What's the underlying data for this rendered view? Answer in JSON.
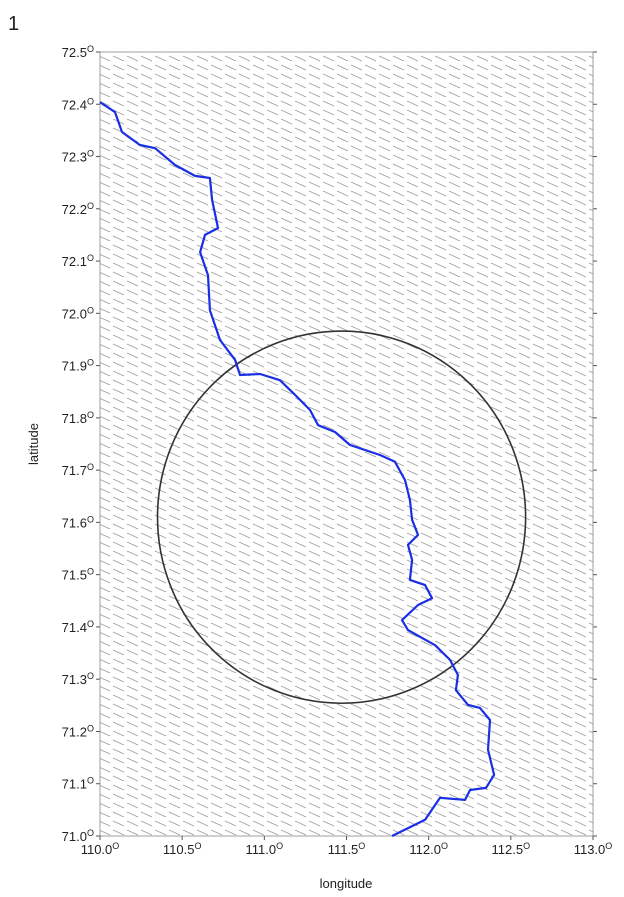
{
  "chart_data": {
    "type": "map",
    "panel_label": "1",
    "x_label": "longitude",
    "y_label": "latitude",
    "tick_suffix": "O",
    "xlim": [
      110,
      113
    ],
    "ylim": [
      71,
      72.5
    ],
    "xticks": [
      {
        "value": 110,
        "label": "110.0"
      },
      {
        "value": 110.5,
        "label": "110.5"
      },
      {
        "value": 111,
        "label": "111.0"
      },
      {
        "value": 111.5,
        "label": "111.5"
      },
      {
        "value": 112,
        "label": "112.0"
      },
      {
        "value": 112.5,
        "label": "112.5"
      },
      {
        "value": 113,
        "label": "113.0"
      }
    ],
    "yticks": [
      {
        "value": 71,
        "label": "71.0"
      },
      71.1,
      71.2,
      71.3,
      71.4,
      71.5,
      71.6,
      71.7,
      71.8,
      71.9,
      {
        "value": 72,
        "label": "72.0"
      },
      72.1,
      72.2,
      72.3,
      72.4,
      72.5
    ],
    "river": {
      "color": "#1a2ee6",
      "x": [
        110.0,
        110.091,
        110.134,
        110.243,
        110.335,
        110.456,
        110.578,
        110.669,
        110.682,
        110.718,
        110.639,
        110.609,
        110.657,
        110.669,
        110.73,
        110.822,
        110.852,
        110.974,
        111.095,
        111.187,
        111.278,
        111.327,
        111.43,
        111.521,
        111.704,
        111.795,
        111.856,
        111.886,
        111.899,
        111.935,
        111.874,
        111.899,
        111.886,
        111.978,
        112.02,
        111.935,
        111.838,
        111.874,
        112.039,
        112.13,
        112.178,
        112.166,
        112.239,
        112.312,
        112.373,
        112.361,
        112.398,
        112.349,
        112.252,
        112.221,
        112.069,
        111.978,
        111.777
      ],
      "y": [
        72.404,
        72.385,
        72.347,
        72.322,
        72.316,
        72.284,
        72.263,
        72.259,
        72.217,
        72.163,
        72.15,
        72.117,
        72.073,
        72.006,
        71.949,
        71.911,
        71.882,
        71.884,
        71.872,
        71.844,
        71.815,
        71.786,
        71.773,
        71.748,
        71.729,
        71.716,
        71.681,
        71.643,
        71.605,
        71.576,
        71.557,
        71.528,
        71.49,
        71.48,
        71.455,
        71.442,
        71.413,
        71.394,
        71.365,
        71.337,
        71.308,
        71.279,
        71.251,
        71.245,
        71.222,
        71.165,
        71.117,
        71.092,
        71.088,
        71.069,
        71.073,
        71.031,
        71.0
      ]
    },
    "circle": {
      "center": [
        111.47,
        71.61
      ],
      "radius": [
        1.12,
        0.356
      ],
      "color": "#333333"
    }
  }
}
